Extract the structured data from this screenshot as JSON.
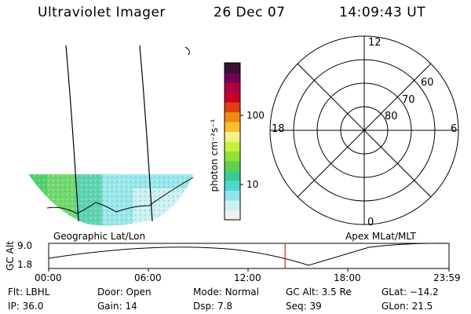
{
  "header": {
    "title": "Ultraviolet Imager",
    "date": "26 Dec 07",
    "time": "14:09:43 UT"
  },
  "left_panel": {
    "caption": "Geographic Lat/Lon"
  },
  "colorbar": {
    "label": "photon cm⁻²s⁻¹",
    "ticks": [
      "100",
      "10"
    ],
    "scale": "log",
    "colors": [
      "#f0f0f0",
      "#cfeff4",
      "#93e5ec",
      "#4fd6cf",
      "#3cc99a",
      "#62d04a",
      "#8ee23a",
      "#c8ef3a",
      "#f4f08c",
      "#f7c030",
      "#f08a10",
      "#e04010",
      "#c80028",
      "#b00040",
      "#700050",
      "#3a1030"
    ]
  },
  "polar_plot": {
    "caption": "Apex MLat/MLT",
    "mlt_labels": {
      "top": "12",
      "left": "18",
      "right": "6",
      "bottom": "0"
    },
    "lat_labels": [
      "60",
      "70",
      "80"
    ]
  },
  "altitude_plot": {
    "ylabel": "GC Alt",
    "yticks": [
      "9.0",
      "1.8"
    ],
    "xticks": [
      "00:00",
      "06:00",
      "12:00",
      "18:00",
      "23:59"
    ],
    "current_time_marker": "14:09:43",
    "marker_color": "#c00000"
  },
  "footer": {
    "row1": [
      {
        "label": "Flt:",
        "value": "LBHL"
      },
      {
        "label": "Door:",
        "value": "Open"
      },
      {
        "label": "Mode:",
        "value": "Normal"
      },
      {
        "label": "GC Alt:",
        "value": "3.5 Re"
      },
      {
        "label": "GLat:",
        "value": "−14.2"
      }
    ],
    "row2": [
      {
        "label": "IP:",
        "value": "36.0"
      },
      {
        "label": "Gain:",
        "value": "14"
      },
      {
        "label": "Dsp:",
        "value": "7.8"
      },
      {
        "label": "Seq:",
        "value": "39"
      },
      {
        "label": "GLon:",
        "value": "21.5"
      }
    ]
  }
}
